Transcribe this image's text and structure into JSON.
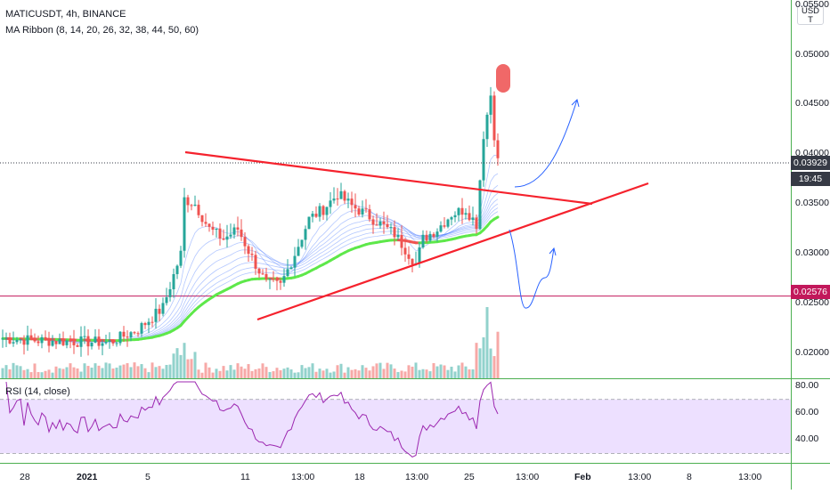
{
  "chart": {
    "symbol_line": "MATICUSDT, 4h, BINANCE",
    "indicator_line": "MA Ribbon (8, 14, 20, 26, 32, 38, 44, 50, 60)",
    "rsi_label": "RSI (14, close)",
    "currency_button": "USD\nT"
  },
  "price_axis": {
    "labels": [
      {
        "text": "0.05500",
        "value": 0.055
      },
      {
        "text": "0.05000",
        "value": 0.05
      },
      {
        "text": "0.04500",
        "value": 0.045
      },
      {
        "text": "0.04000",
        "value": 0.04
      },
      {
        "text": "0.03500",
        "value": 0.035
      },
      {
        "text": "0.03000",
        "value": 0.03
      },
      {
        "text": "0.02500",
        "value": 0.025
      },
      {
        "text": "0.02000",
        "value": 0.02
      }
    ],
    "current_price": "0.03929",
    "countdown": "19:45",
    "horizontal_level": "0.02576"
  },
  "rsi_axis": {
    "labels": [
      {
        "text": "80.00",
        "value": 80
      },
      {
        "text": "60.00",
        "value": 60
      },
      {
        "text": "40.00",
        "value": 40
      }
    ]
  },
  "time_axis": [
    "28",
    "2021",
    "5",
    "11",
    "13:00",
    "18",
    "13:00",
    "25",
    "13:00",
    "Feb",
    "13:00",
    "8",
    "13:00"
  ],
  "colors": {
    "bull": "#26a69a",
    "bear": "#ef5350",
    "ribbon_fast": "#2962ff",
    "ribbon_slow_up": "#5ee84a",
    "ribbon_slow_down": "#ef5350",
    "trendline": "#f5222d",
    "level_line": "#c2185b",
    "rsi_line": "#9c27b0",
    "rsi_band": "#ede0ff",
    "axis_green": "#4caf50",
    "projection": "#2962ff",
    "marker": "#f06868",
    "price_tag_current": "#363a45",
    "price_tag_level": "#c2185b"
  },
  "chart_data": {
    "type": "candlestick",
    "title": "MATICUSDT, 4h, BINANCE",
    "ylim": [
      0.0175,
      0.0555
    ],
    "rsi_levels": [
      70,
      30
    ],
    "rsi_ylim": [
      23,
      85
    ],
    "x_ticks": [
      "28",
      "2021",
      "5",
      "11",
      "13:00",
      "18",
      "13:00",
      "25",
      "13:00",
      "Feb",
      "13:00",
      "8",
      "13:00"
    ],
    "annotations": [
      "descending trendline",
      "ascending trendline",
      "horizontal level 0.02576",
      "bullish projection arrow",
      "bearish-then-bullish projection arrow",
      "highlight at local high"
    ]
  }
}
